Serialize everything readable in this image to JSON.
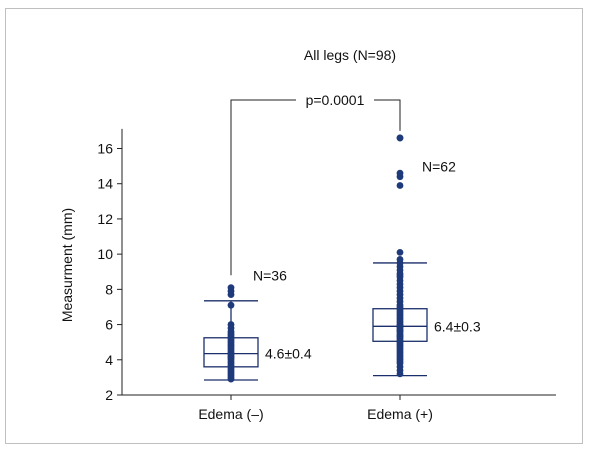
{
  "chart_data": {
    "type": "box",
    "title": "All legs (N=98)",
    "ylabel": "Measurment (mm)",
    "xlabel": "",
    "ylim": [
      2,
      17
    ],
    "yticks": [
      2,
      4,
      6,
      8,
      10,
      12,
      14,
      16
    ],
    "categories": [
      "Edema (–)",
      "Edema (+)"
    ],
    "groups": [
      {
        "label": "Edema (–)",
        "n_label": "N=36",
        "summary_label": "4.6±0.4",
        "whisker_low": 2.85,
        "q1": 3.6,
        "median": 4.35,
        "q3": 5.25,
        "whisker_high": 7.35,
        "points": [
          2.9,
          3.0,
          3.1,
          3.2,
          3.3,
          3.4,
          3.5,
          3.6,
          3.7,
          3.8,
          3.9,
          4.0,
          4.1,
          4.15,
          4.2,
          4.3,
          4.35,
          4.4,
          4.5,
          4.6,
          4.7,
          4.8,
          4.9,
          5.0,
          5.1,
          5.2,
          5.3,
          5.4,
          5.5,
          5.6,
          5.8,
          6.0,
          7.1,
          7.7,
          7.9,
          8.1
        ]
      },
      {
        "label": "Edema (+)",
        "n_label": "N=62",
        "summary_label": "6.4±0.3",
        "whisker_low": 3.1,
        "q1": 5.05,
        "median": 5.9,
        "q3": 6.9,
        "whisker_high": 9.5,
        "points": [
          3.2,
          3.4,
          3.6,
          3.8,
          3.9,
          4.0,
          4.1,
          4.2,
          4.3,
          4.4,
          4.5,
          4.6,
          4.7,
          4.8,
          4.9,
          5.0,
          5.05,
          5.1,
          5.2,
          5.3,
          5.35,
          5.4,
          5.5,
          5.6,
          5.65,
          5.7,
          5.8,
          5.85,
          5.9,
          5.95,
          6.0,
          6.1,
          6.2,
          6.3,
          6.4,
          6.5,
          6.6,
          6.7,
          6.8,
          6.9,
          7.0,
          7.1,
          7.3,
          7.5,
          7.7,
          7.9,
          8.1,
          8.3,
          8.5,
          8.7,
          8.8,
          8.9,
          9.1,
          9.3,
          9.5,
          9.7,
          10.1,
          13.9,
          14.4,
          14.6,
          16.6,
          16.6
        ]
      }
    ],
    "annotation": {
      "text": "p=0.0001"
    }
  },
  "colors": {
    "marker": "#1f3a7a",
    "box": "#1b2f6b",
    "axis": "#222222"
  }
}
